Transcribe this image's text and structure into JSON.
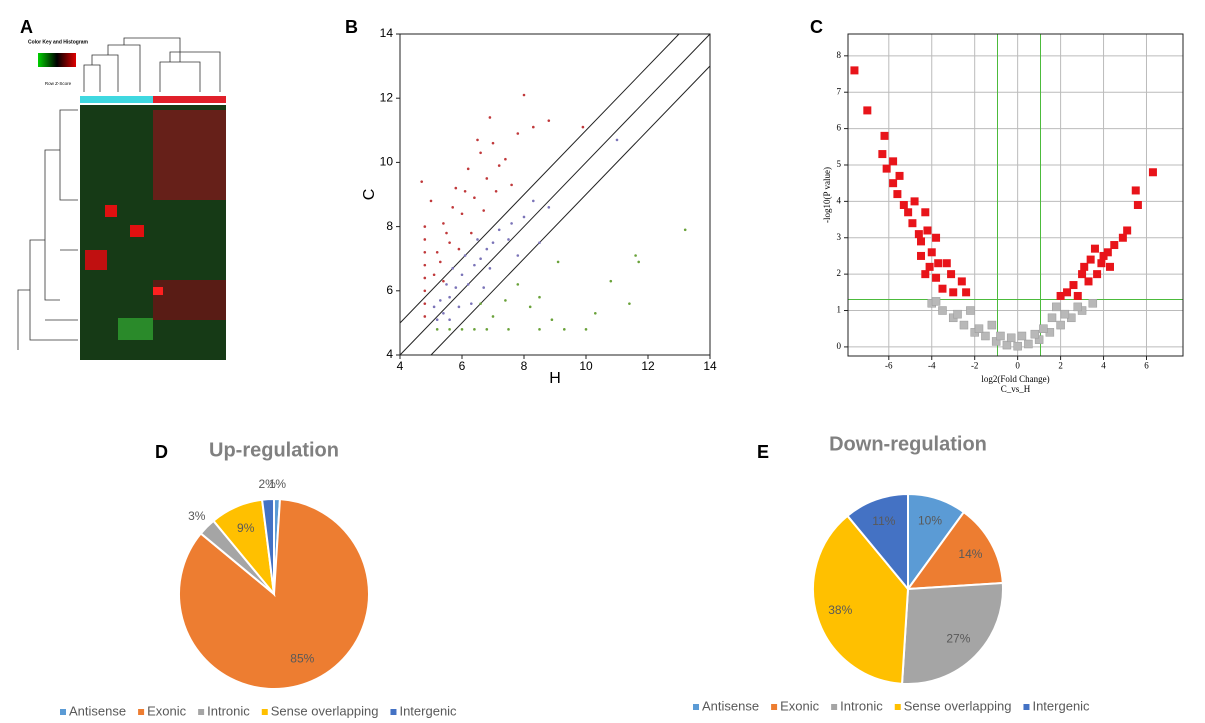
{
  "heatmap": {
    "panel_label": "A",
    "color_key_title": "Color Key and Histogram",
    "color_key_label": "Row Z-Score"
  },
  "chart_data": [
    {
      "type": "scatter",
      "panel_label": "B",
      "xlabel": "H",
      "ylabel": "C",
      "marker": "dot",
      "xlim": [
        4,
        14
      ],
      "ylim": [
        4,
        14
      ],
      "xticks": [
        4,
        6,
        8,
        10,
        12,
        14
      ],
      "yticks": [
        4,
        6,
        8,
        10,
        12,
        14
      ],
      "series": [
        {
          "color": "#c0393b",
          "x": [
            4.8,
            4.8,
            4.8,
            4.8,
            4.8,
            4.8,
            4.8,
            4.8,
            5.1,
            5.2,
            5.4,
            5.6,
            5.8,
            6,
            6.2,
            6.4,
            6.6,
            6.8,
            7,
            7.2,
            7.4,
            7.8,
            8,
            8.3,
            8.8,
            9.9,
            5.3,
            5.5,
            5.9,
            6.1,
            6.3,
            5.7,
            6.7,
            7.1,
            7.6,
            4.7,
            5.0,
            6.5,
            5.4,
            6.9
          ],
          "y": [
            5.2,
            5.6,
            6,
            6.4,
            6.8,
            7.2,
            7.6,
            8,
            6.5,
            7.2,
            8.1,
            7.5,
            9.2,
            8.4,
            9.8,
            8.9,
            10.3,
            9.5,
            10.6,
            9.9,
            10.1,
            10.9,
            12.1,
            11.1,
            11.3,
            11.1,
            6.9,
            7.8,
            7.3,
            9.1,
            7.8,
            8.6,
            8.5,
            9.1,
            9.3,
            9.4,
            8.8,
            10.7,
            6.3,
            11.4
          ]
        },
        {
          "color": "#7b74b8",
          "x": [
            5.2,
            5.4,
            5.6,
            5.8,
            6,
            6.2,
            6.4,
            6.6,
            6.8,
            7,
            7.2,
            7.6,
            8,
            8.5,
            8.8,
            5.5,
            5.9,
            6.3,
            6.7,
            5.3,
            5.1,
            6.1,
            5.7,
            7.5,
            11,
            8.3,
            7.8,
            6.5,
            5.6,
            6.9
          ],
          "y": [
            5.1,
            5.3,
            5.8,
            6.1,
            6.5,
            6.2,
            6.8,
            7,
            7.3,
            7.5,
            7.9,
            8.1,
            8.3,
            7.5,
            8.6,
            6.2,
            5.5,
            5.6,
            6.1,
            5.7,
            5.5,
            7.1,
            6.7,
            7.6,
            10.7,
            8.8,
            7.1,
            7.6,
            5.1,
            6.7
          ]
        },
        {
          "color": "#6aa23a",
          "x": [
            5.2,
            5.6,
            6,
            6.4,
            6.8,
            7.5,
            8.5,
            9.3,
            10,
            6.6,
            7,
            7.4,
            8.2,
            8.9,
            9.1,
            10.3,
            10.8,
            11.4,
            11.7,
            13.2,
            8.5,
            11.6,
            7.8
          ],
          "y": [
            4.8,
            4.8,
            4.8,
            4.8,
            4.8,
            4.8,
            4.8,
            4.8,
            4.8,
            5.6,
            5.2,
            5.7,
            5.5,
            5.1,
            6.9,
            5.3,
            6.3,
            5.6,
            6.9,
            7.9,
            5.8,
            7.1,
            6.2
          ]
        }
      ]
    },
    {
      "type": "scatter",
      "panel_label": "C",
      "xlabel": "log2(Fold Change)",
      "annotation": "C_vs_H",
      "ylabel": "-log10(P value)",
      "marker": "square",
      "grid": true,
      "xlim": [
        -7.9,
        7.7
      ],
      "ylim": [
        -0.25,
        8.6
      ],
      "xticks": [
        -6,
        -4,
        -2,
        0,
        2,
        4,
        6
      ],
      "yticks": [
        0,
        1,
        2,
        3,
        4,
        5,
        6,
        7,
        8
      ],
      "series": [
        {
          "color": "#b8b8b8",
          "x": [
            -4,
            -3.5,
            -3,
            -2.5,
            -2,
            -1.5,
            -1,
            -0.5,
            0,
            0.5,
            1,
            1.5,
            2,
            2.5,
            3,
            3.5,
            -3.8,
            -2.8,
            -1.8,
            2.2,
            2.8,
            -1.2,
            1.2,
            -0.8,
            0.8,
            1.8,
            -2.2,
            0.2,
            -0.3,
            1.6
          ],
          "y": [
            1.2,
            1.0,
            0.8,
            0.6,
            0.4,
            0.3,
            0.15,
            0.05,
            0.02,
            0.08,
            0.2,
            0.4,
            0.6,
            0.8,
            1.0,
            1.2,
            1.25,
            0.9,
            0.5,
            0.9,
            1.1,
            0.6,
            0.5,
            0.3,
            0.35,
            1.1,
            1.0,
            0.3,
            0.25,
            0.8
          ]
        },
        {
          "color": "#e8141a",
          "x": [
            -7.6,
            -7,
            -6.2,
            -6.3,
            -5.8,
            -6.1,
            -5.5,
            -5.8,
            -5.6,
            -5.3,
            -5.1,
            -4.9,
            -4.6,
            -4.5,
            -4.8,
            -4.3,
            -4.2,
            -3.8,
            -4,
            -3.7,
            -4.1,
            -3.3,
            -3.1,
            -3.8,
            -3.5,
            -2.6,
            -2.4,
            -3.0,
            -4.5,
            -4.3,
            6.3,
            5.5,
            5.6,
            5.1,
            4.9,
            4.5,
            4.2,
            4.0,
            3.6,
            3.9,
            3.4,
            3.1,
            3.0,
            2.6,
            2.3,
            2.0,
            3.7,
            3.3,
            2.8,
            4.3
          ],
          "y": [
            7.6,
            6.5,
            5.8,
            5.3,
            5.1,
            4.9,
            4.7,
            4.5,
            4.2,
            3.9,
            3.7,
            3.4,
            3.1,
            2.9,
            4.0,
            3.7,
            3.2,
            3.0,
            2.6,
            2.3,
            2.2,
            2.3,
            2.0,
            1.9,
            1.6,
            1.8,
            1.5,
            1.5,
            2.5,
            2.0,
            4.8,
            4.3,
            3.9,
            3.2,
            3.0,
            2.8,
            2.6,
            2.5,
            2.7,
            2.3,
            2.4,
            2.2,
            2.0,
            1.7,
            1.5,
            1.4,
            2.0,
            1.8,
            1.4,
            2.2
          ]
        }
      ]
    },
    {
      "type": "pie",
      "panel_label": "D",
      "title": "Up-regulation",
      "categories": [
        "Antisense",
        "Exonic",
        "Intronic",
        "Sense overlapping",
        "Intergenic"
      ],
      "values": [
        1,
        85,
        3,
        9,
        2
      ],
      "value_labels": [
        "1%",
        "85%",
        "3%",
        "9%",
        "2%"
      ],
      "colors": [
        "#5b9bd5",
        "#ed7d31",
        "#a5a5a5",
        "#ffc000",
        "#4472c4"
      ]
    },
    {
      "type": "pie",
      "panel_label": "E",
      "title": "Down-regulation",
      "categories": [
        "Antisense",
        "Exonic",
        "Intronic",
        "Sense overlapping",
        "Intergenic"
      ],
      "values": [
        10,
        14,
        27,
        38,
        11
      ],
      "value_labels": [
        "10%",
        "14%",
        "27%",
        "38%",
        "11%"
      ],
      "colors": [
        "#5b9bd5",
        "#ed7d31",
        "#a5a5a5",
        "#ffc000",
        "#4472c4"
      ]
    }
  ]
}
